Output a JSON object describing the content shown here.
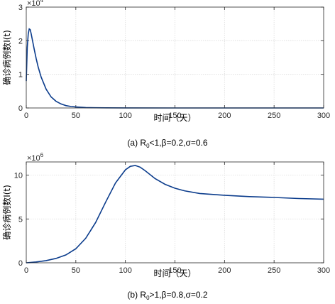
{
  "chart_data": [
    {
      "type": "line",
      "caption": {
        "pre": "(a) R",
        "sub": "0",
        "post": "<1,β=0.2,σ=0.6"
      },
      "xlabel": "时间（天）",
      "ylabel": "确诊病例数I(t)",
      "exponent_label": {
        "base": "×10",
        "exp": "4"
      },
      "xlim": [
        0,
        300
      ],
      "ylim": [
        0,
        3
      ],
      "xticks": [
        0,
        50,
        100,
        150,
        200,
        250,
        300
      ],
      "yticks": [
        0,
        1,
        2,
        3
      ],
      "grid": true,
      "series": [
        {
          "color": "#0b3c8c",
          "x": [
            0,
            1,
            2,
            3,
            4,
            5,
            6,
            7,
            8,
            10,
            12,
            15,
            20,
            25,
            30,
            35,
            40,
            45,
            50,
            60,
            70,
            80,
            100,
            150,
            200,
            250,
            300
          ],
          "y": [
            0.8,
            1.8,
            2.2,
            2.35,
            2.33,
            2.2,
            2.05,
            1.9,
            1.75,
            1.47,
            1.22,
            0.92,
            0.56,
            0.33,
            0.2,
            0.12,
            0.07,
            0.045,
            0.03,
            0.012,
            0.006,
            0.003,
            0.001,
            0,
            0,
            0,
            0
          ]
        }
      ]
    },
    {
      "type": "line",
      "caption": {
        "pre": "(b) R",
        "sub": "0",
        "post": ">1,β=0.8,σ=0.2"
      },
      "xlabel": "时间（天）",
      "ylabel": "确诊病例数I(t)",
      "exponent_label": {
        "base": "×10",
        "exp": "6"
      },
      "xlim": [
        0,
        300
      ],
      "ylim": [
        0,
        11.5
      ],
      "xticks": [
        0,
        50,
        100,
        150,
        200,
        250,
        300
      ],
      "yticks": [
        0,
        5,
        10
      ],
      "grid": true,
      "series": [
        {
          "color": "#0b3c8c",
          "x": [
            0,
            10,
            20,
            30,
            40,
            50,
            60,
            70,
            80,
            90,
            100,
            105,
            110,
            115,
            120,
            130,
            140,
            150,
            160,
            175,
            200,
            225,
            250,
            275,
            300
          ],
          "y": [
            0,
            0.1,
            0.25,
            0.5,
            0.9,
            1.6,
            2.8,
            4.6,
            6.9,
            9.1,
            10.6,
            11.0,
            11.1,
            10.9,
            10.5,
            9.6,
            8.95,
            8.5,
            8.2,
            7.9,
            7.7,
            7.55,
            7.45,
            7.33,
            7.25
          ]
        }
      ]
    }
  ]
}
